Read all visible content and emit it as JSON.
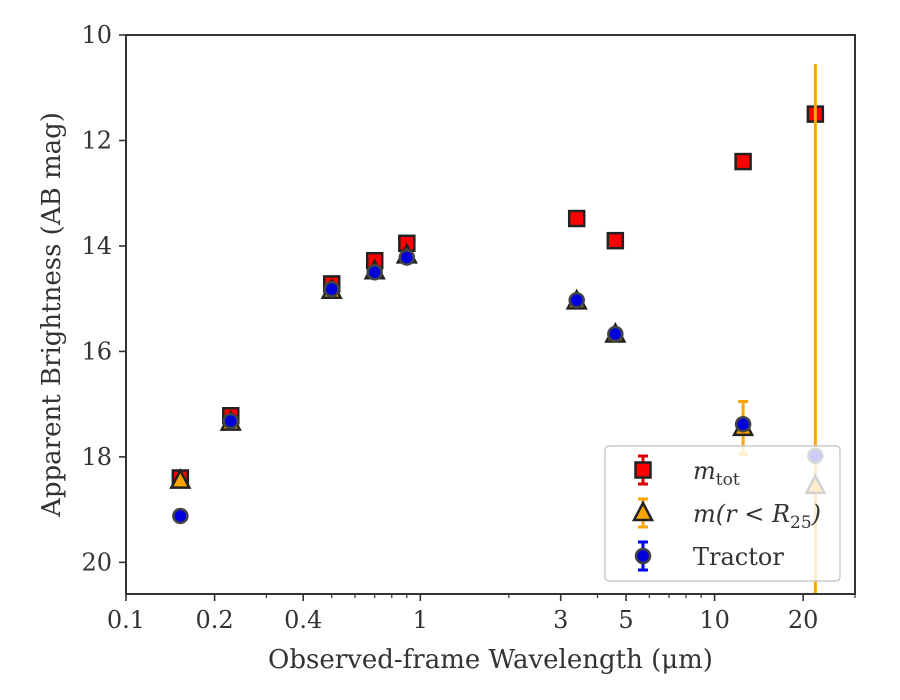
{
  "chart_data": {
    "type": "scatter",
    "title": "",
    "xlabel": "Observed-frame Wavelength (μm)",
    "ylabel": "Apparent Brightness (AB mag)",
    "xscale": "log",
    "xlim": [
      0.1,
      30
    ],
    "ylim": [
      20.6,
      10
    ],
    "y_inverted": true,
    "grid": false,
    "legend_placement": "lower-right",
    "x_ticks": [
      {
        "value": 0.1,
        "label": "0.1"
      },
      {
        "value": 0.2,
        "label": "0.2"
      },
      {
        "value": 0.4,
        "label": "0.4"
      },
      {
        "value": 1,
        "label": "1"
      },
      {
        "value": 3,
        "label": "3"
      },
      {
        "value": 5,
        "label": "5"
      },
      {
        "value": 10,
        "label": "10"
      },
      {
        "value": 20,
        "label": "20"
      }
    ],
    "y_ticks": [
      {
        "value": 10,
        "label": "10"
      },
      {
        "value": 12,
        "label": "12"
      },
      {
        "value": 14,
        "label": "14"
      },
      {
        "value": 16,
        "label": "16"
      },
      {
        "value": 18,
        "label": "18"
      },
      {
        "value": 20,
        "label": "20"
      }
    ],
    "series": [
      {
        "name": "m_tot",
        "legend": {
          "base": "m",
          "sub": "tot"
        },
        "marker": "square",
        "color": "#ff0000",
        "edge_color": "#222222",
        "errbar_color": "#dd0000",
        "points": [
          {
            "x": 0.153,
            "y": 18.4,
            "err": 0.05
          },
          {
            "x": 0.227,
            "y": 17.22,
            "err": 0.05
          },
          {
            "x": 0.5,
            "y": 14.72,
            "err": 0.05
          },
          {
            "x": 0.7,
            "y": 14.28,
            "err": 0.05
          },
          {
            "x": 0.9,
            "y": 13.95,
            "err": 0.05
          },
          {
            "x": 3.4,
            "y": 13.48,
            "err": 0.05
          },
          {
            "x": 4.6,
            "y": 13.9,
            "err": 0.05
          },
          {
            "x": 12.5,
            "y": 12.4,
            "err": 0.05
          },
          {
            "x": 22.0,
            "y": 11.5,
            "err": 0.05
          }
        ]
      },
      {
        "name": "m(r < R25)",
        "legend": {
          "base": "m(r < R",
          "sub": "25",
          "tail": ")"
        },
        "marker": "triangle",
        "color": "#ffa500",
        "edge_color": "#222222",
        "errbar_color": "#ffa500",
        "points": [
          {
            "x": 0.153,
            "y": 18.45,
            "err": 0.05
          },
          {
            "x": 0.227,
            "y": 17.35,
            "err": 0.05
          },
          {
            "x": 0.5,
            "y": 14.85,
            "err": 0.05
          },
          {
            "x": 0.7,
            "y": 14.48,
            "err": 0.05
          },
          {
            "x": 0.9,
            "y": 14.18,
            "err": 0.05
          },
          {
            "x": 3.4,
            "y": 15.05,
            "err": 0.05
          },
          {
            "x": 4.6,
            "y": 15.68,
            "err": 0.05
          },
          {
            "x": 12.5,
            "y": 17.45,
            "err": 0.5
          },
          {
            "x": 22.0,
            "y": 18.55,
            "err": 8
          }
        ]
      },
      {
        "name": "Tractor",
        "legend": {
          "base": "Tractor",
          "sub": ""
        },
        "marker": "circle",
        "color": "#0000dd",
        "edge_color": "#444444",
        "errbar_color": "#0000ee",
        "points": [
          {
            "x": 0.153,
            "y": 19.12,
            "err": 0.03
          },
          {
            "x": 0.227,
            "y": 17.32,
            "err": 0.03
          },
          {
            "x": 0.5,
            "y": 14.82,
            "err": 0.03
          },
          {
            "x": 0.7,
            "y": 14.5,
            "err": 0.03
          },
          {
            "x": 0.9,
            "y": 14.22,
            "err": 0.03
          },
          {
            "x": 3.4,
            "y": 15.03,
            "err": 0.03
          },
          {
            "x": 4.6,
            "y": 15.67,
            "err": 0.03
          },
          {
            "x": 12.5,
            "y": 17.38,
            "err": 0.05
          },
          {
            "x": 22.0,
            "y": 17.98,
            "err": 0.05
          }
        ]
      }
    ]
  }
}
